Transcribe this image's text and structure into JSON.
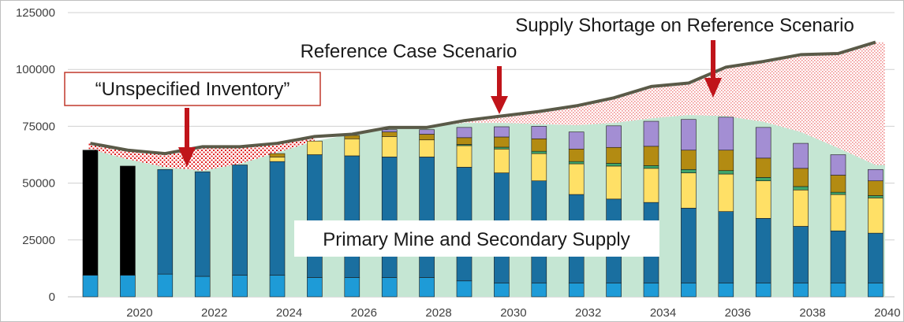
{
  "chart_data": {
    "type": "bar",
    "title": "",
    "xlabel": "",
    "ylabel": "",
    "ylim": [
      0,
      125000
    ],
    "y_ticks": [
      "0",
      "25000",
      "50000",
      "75000",
      "100000",
      "125000"
    ],
    "y_tick_values": [
      0,
      25000,
      50000,
      75000,
      100000,
      125000
    ],
    "years": [
      2019,
      2020,
      2021,
      2022,
      2023,
      2024,
      2025,
      2026,
      2027,
      2028,
      2029,
      2030,
      2031,
      2032,
      2033,
      2034,
      2035,
      2036,
      2037,
      2038,
      2039,
      2040
    ],
    "x_tick_labels": [
      "2020",
      "2022",
      "2024",
      "2026",
      "2028",
      "2030",
      "2032",
      "2034",
      "2036",
      "2038",
      "2040"
    ],
    "x_tick_years": [
      2020,
      2022,
      2024,
      2026,
      2028,
      2030,
      2032,
      2034,
      2036,
      2038,
      2040
    ],
    "grid": true,
    "colors": {
      "light_blue": "#1e9bd7",
      "dark_blue": "#1a6fa0",
      "yellow": "#ffe066",
      "green": "#3fa66b",
      "gold": "#b38b12",
      "purple": "#a38ed3",
      "black": "#000000",
      "mine_area": "#c5e6d3",
      "shortage_area": "#f3a6a6",
      "inventory_hatch": "#e02020",
      "reference_line": "#5a5a48",
      "callout_border": "#c0392b",
      "arrow": "#c0141a"
    },
    "series": [
      {
        "key": "light_blue",
        "values": [
          9500,
          9500,
          10000,
          9000,
          9500,
          9500,
          8500,
          8500,
          8500,
          8500,
          7000,
          6000,
          6000,
          6000,
          6000,
          6000,
          6000,
          6000,
          6000,
          6000,
          6000,
          6000
        ]
      },
      {
        "key": "black",
        "values": [
          55000,
          48000,
          0,
          0,
          0,
          0,
          0,
          0,
          0,
          0,
          0,
          0,
          0,
          0,
          0,
          0,
          0,
          0,
          0,
          0,
          0,
          0
        ]
      },
      {
        "key": "dark_blue",
        "values": [
          0,
          0,
          46000,
          46000,
          48500,
          50000,
          54000,
          53500,
          53000,
          53000,
          50000,
          48500,
          45000,
          39000,
          37000,
          35500,
          33000,
          31500,
          28500,
          25000,
          23000,
          22000
        ]
      },
      {
        "key": "yellow",
        "values": [
          0,
          0,
          0,
          0,
          0,
          2000,
          6000,
          7500,
          9000,
          7500,
          9500,
          10500,
          12000,
          13500,
          14500,
          15000,
          15500,
          16500,
          16500,
          16000,
          16000,
          15500
        ]
      },
      {
        "key": "green",
        "values": [
          0,
          0,
          0,
          0,
          0,
          0,
          0,
          0,
          0,
          0,
          500,
          800,
          1000,
          1000,
          1200,
          1200,
          1500,
          1500,
          1500,
          1500,
          1000,
          1000
        ]
      },
      {
        "key": "gold",
        "values": [
          0,
          0,
          0,
          0,
          0,
          1500,
          0,
          1500,
          2000,
          2500,
          3000,
          4500,
          5500,
          5500,
          7000,
          8500,
          8500,
          9000,
          8500,
          8000,
          7500,
          6500
        ]
      },
      {
        "key": "purple",
        "values": [
          0,
          0,
          0,
          0,
          0,
          0,
          0,
          0,
          1000,
          2000,
          4500,
          4500,
          5500,
          7500,
          9500,
          11000,
          13500,
          14500,
          13500,
          11000,
          9000,
          5000
        ]
      }
    ],
    "reference_case": [
      67500,
      64500,
      63000,
      66000,
      66000,
      67500,
      70500,
      71500,
      74500,
      74500,
      77500,
      79500,
      81500,
      84000,
      87500,
      92500,
      94000,
      101000,
      103500,
      106500,
      107000,
      112000
    ],
    "primary_mine_secondary_supply": [
      65000,
      60500,
      57000,
      55500,
      58500,
      63500,
      68500,
      71500,
      74500,
      74500,
      76500,
      76500,
      76000,
      75500,
      76500,
      78500,
      80000,
      79500,
      77000,
      72500,
      65500,
      58000
    ],
    "annotations": {
      "unspecified_inventory": "“Unspecified Inventory”",
      "reference_case_scenario": "Reference Case Scenario",
      "supply_shortage": "Supply Shortage on Reference Scenario",
      "primary_mine": "Primary Mine and Secondary Supply"
    }
  }
}
